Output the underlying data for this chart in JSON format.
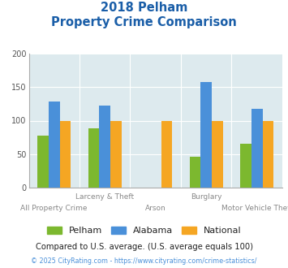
{
  "title_line1": "2018 Pelham",
  "title_line2": "Property Crime Comparison",
  "categories": [
    "All Property Crime",
    "Larceny & Theft",
    "Arson",
    "Burglary",
    "Motor Vehicle Theft"
  ],
  "series": {
    "Pelham": [
      78,
      88,
      null,
      46,
      65
    ],
    "Alabama": [
      128,
      122,
      null,
      158,
      117
    ],
    "National": [
      100,
      100,
      100,
      100,
      100
    ]
  },
  "colors": {
    "Pelham": "#7cb82f",
    "Alabama": "#4a90d9",
    "National": "#f5a623"
  },
  "ylim": [
    0,
    200
  ],
  "yticks": [
    0,
    50,
    100,
    150,
    200
  ],
  "background_color": "#ddeaee",
  "title_color": "#1a5ea8",
  "footer_note": "Compared to U.S. average. (U.S. average equals 100)",
  "footer_credit": "© 2025 CityRating.com - https://www.cityrating.com/crime-statistics/",
  "footer_note_color": "#222222",
  "footer_credit_color": "#4a90d9",
  "bar_width": 0.22
}
